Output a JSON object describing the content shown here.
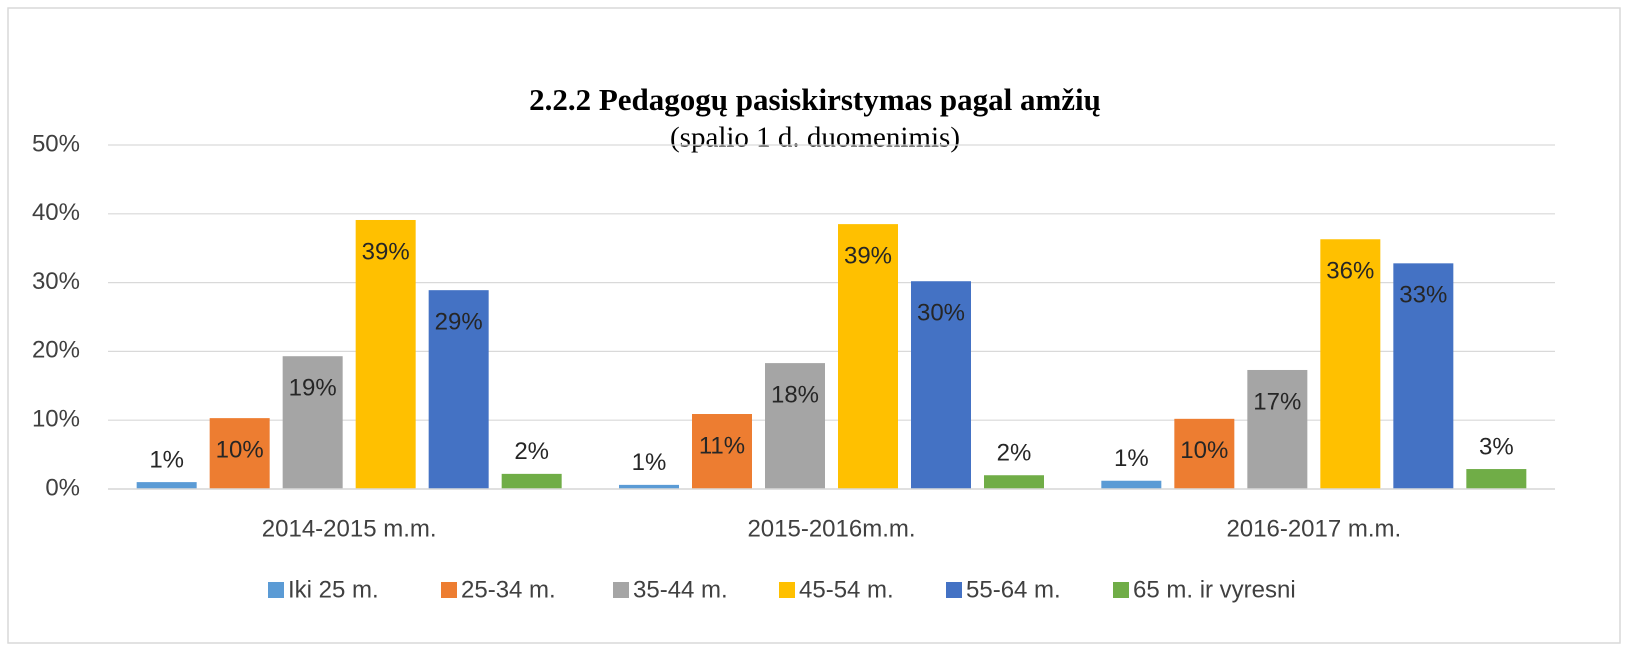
{
  "chart_data": {
    "type": "bar",
    "title": "2.2.2 Pedagogų pasiskirstymas pagal amžių",
    "subtitle": "(spalio 1 d. duomenimis)",
    "categories": [
      "2014-2015 m.m.",
      "2015-2016m.m.",
      "2016-2017 m.m."
    ],
    "series": [
      {
        "name": "Iki 25 m.",
        "color": "#5b9bd5",
        "values": [
          1.0,
          0.6,
          1.2
        ],
        "value_labels": [
          "1%",
          "1%",
          "1%"
        ]
      },
      {
        "name": "25-34 m.",
        "color": "#ed7d31",
        "values": [
          10.3,
          10.9,
          10.2
        ],
        "value_labels": [
          "10%",
          "11%",
          "10%"
        ]
      },
      {
        "name": "35-44 m.",
        "color": "#a5a5a5",
        "values": [
          19.3,
          18.3,
          17.3
        ],
        "value_labels": [
          "19%",
          "18%",
          "17%"
        ]
      },
      {
        "name": "45-54 m.",
        "color": "#ffc000",
        "values": [
          39.1,
          38.5,
          36.3
        ],
        "value_labels": [
          "39%",
          "39%",
          "36%"
        ]
      },
      {
        "name": "55-64 m.",
        "color": "#4472c4",
        "values": [
          28.9,
          30.2,
          32.8
        ],
        "value_labels": [
          "29%",
          "30%",
          "33%"
        ]
      },
      {
        "name": "65 m. ir vyresni",
        "color": "#70ad47",
        "values": [
          2.2,
          2.0,
          2.9
        ],
        "value_labels": [
          "2%",
          "2%",
          "3%"
        ]
      }
    ],
    "ylim": [
      0,
      50
    ],
    "yticks": [
      {
        "value": 0,
        "label": "0%"
      },
      {
        "value": 10,
        "label": "10%"
      },
      {
        "value": 20,
        "label": "20%"
      },
      {
        "value": 30,
        "label": "30%"
      },
      {
        "value": 40,
        "label": "40%"
      },
      {
        "value": 50,
        "label": "50%"
      }
    ],
    "grid": true,
    "legend": "bottom"
  }
}
